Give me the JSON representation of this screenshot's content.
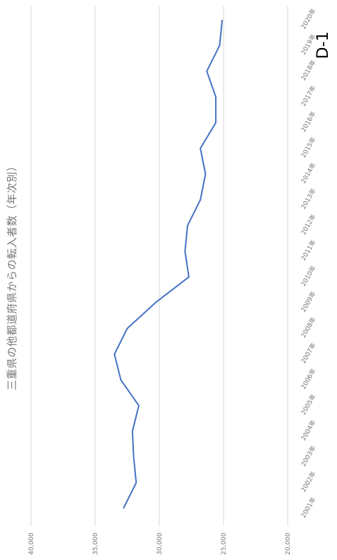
{
  "chart_data": {
    "type": "line",
    "title": "三重県の他都道府県からの転入者数（年次別）",
    "annotation": "D-1",
    "categories": [
      "2001年",
      "2002年",
      "2003年",
      "2004年",
      "2005年",
      "2006年",
      "2007年",
      "2008年",
      "2009年",
      "2010年",
      "2011年",
      "2012年",
      "2013年",
      "2014年",
      "2015年",
      "2016年",
      "2017年",
      "2018年",
      "2019年",
      "2020年"
    ],
    "series": [
      {
        "values": [
          32800,
          31800,
          32000,
          32100,
          31600,
          33000,
          33500,
          32500,
          30300,
          27700,
          28000,
          27800,
          26800,
          26400,
          26800,
          25600,
          25600,
          26300,
          25300,
          25100
        ]
      }
    ],
    "y_ticks": [
      "40,000",
      "35,000",
      "30,000",
      "25,000",
      "20,000"
    ],
    "ylim": [
      20000,
      40000
    ],
    "grid": true,
    "legend": "none",
    "colors": {
      "line": "#4472c4",
      "grid": "#d9d9d9",
      "text": "#777777"
    }
  }
}
